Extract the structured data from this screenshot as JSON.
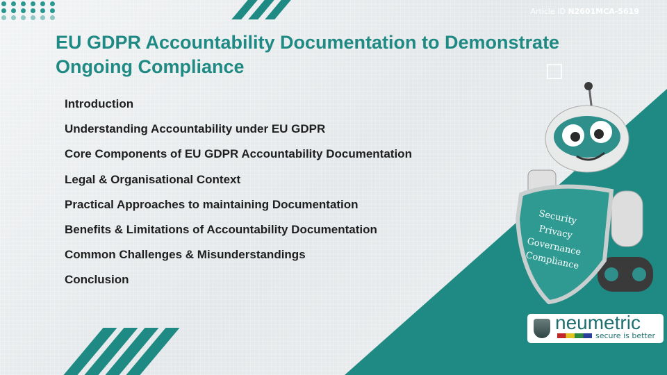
{
  "article": {
    "label": "Article ID",
    "id": "N2601MCA-5619"
  },
  "title": "EU GDPR Accountability Documentation to Demonstrate Ongoing Compliance",
  "agenda": [
    "Introduction",
    "Understanding Accountability under EU GDPR",
    "Core Components of EU GDPR Accountability Documentation",
    "Legal & Organisational Context",
    "Practical Approaches to maintaining Documentation",
    "Benefits & Limitations of Accountability Documentation",
    "Common Challenges & Misunderstandings",
    "Conclusion"
  ],
  "shield_words": [
    "Security",
    "Privacy",
    "Governance",
    "Compliance"
  ],
  "logo": {
    "name": "neumetric",
    "tagline": "secure is better"
  },
  "colors": {
    "accent": "#1f8a84",
    "text": "#1e1e1e"
  }
}
